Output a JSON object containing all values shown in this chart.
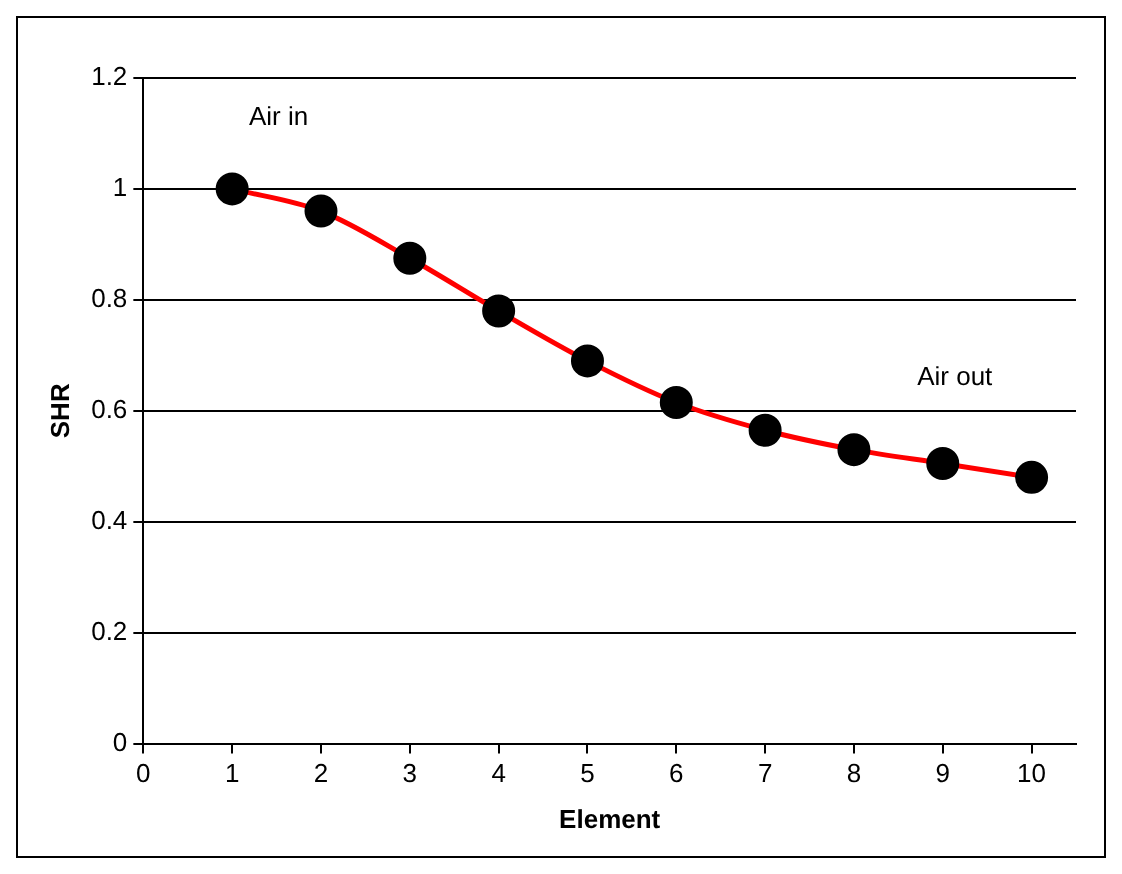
{
  "chart_data": {
    "type": "line",
    "xlabel": "Element",
    "ylabel": "SHR",
    "x": [
      1,
      2,
      3,
      4,
      5,
      6,
      7,
      8,
      9,
      10
    ],
    "series": [
      {
        "color": "#ff0000",
        "values": [
          1.0,
          0.96,
          0.875,
          0.78,
          0.69,
          0.615,
          0.565,
          0.53,
          0.505,
          0.48
        ]
      }
    ],
    "xlim": [
      0,
      10.5
    ],
    "xticks": [
      0,
      1,
      2,
      3,
      4,
      5,
      6,
      7,
      8,
      9,
      10
    ],
    "ylim": [
      0,
      1.2
    ],
    "yticks": [
      0,
      0.2,
      0.4,
      0.6,
      0.8,
      1,
      1.2
    ],
    "grid": "y",
    "legend": false,
    "marker": "circle",
    "line_style": "solid",
    "annotations": [
      "Air in",
      "Air out"
    ]
  }
}
